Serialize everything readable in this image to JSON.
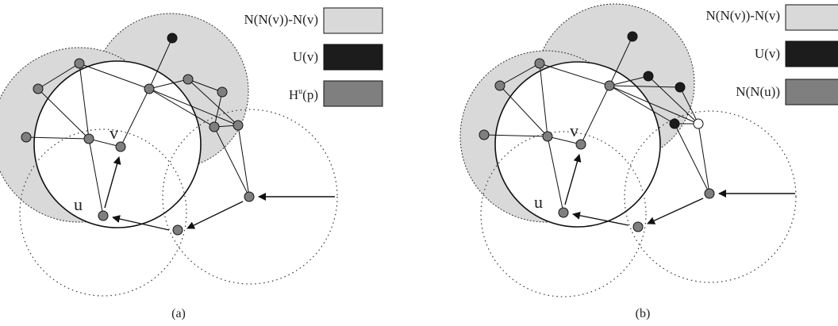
{
  "colors": {
    "light_gray": "#d9d9d9",
    "black": "#1c1c1c",
    "node_gray": "#7f7f7f",
    "edge": "#111111",
    "dotted": "#333333",
    "white": "#ffffff"
  },
  "panel_a": {
    "caption": "(a)",
    "label_u": "u",
    "label_v": "v",
    "legend": [
      {
        "text": "N(N(v))-N(v)",
        "color": "#d9d9d9"
      },
      {
        "text": "U(v)",
        "color": "#1c1c1c"
      },
      {
        "text": "H",
        "sup": "u",
        "tail": "(p)",
        "color": "#7f7f7f"
      }
    ]
  },
  "panel_b": {
    "caption": "(b)",
    "label_u": "u",
    "label_v": "v",
    "legend": [
      {
        "text": "N(N(v))-N(v)",
        "color": "#d9d9d9"
      },
      {
        "text": "U(v)",
        "color": "#1c1c1c"
      },
      {
        "text": "N(N(u))",
        "color": "#7f7f7f"
      }
    ]
  }
}
